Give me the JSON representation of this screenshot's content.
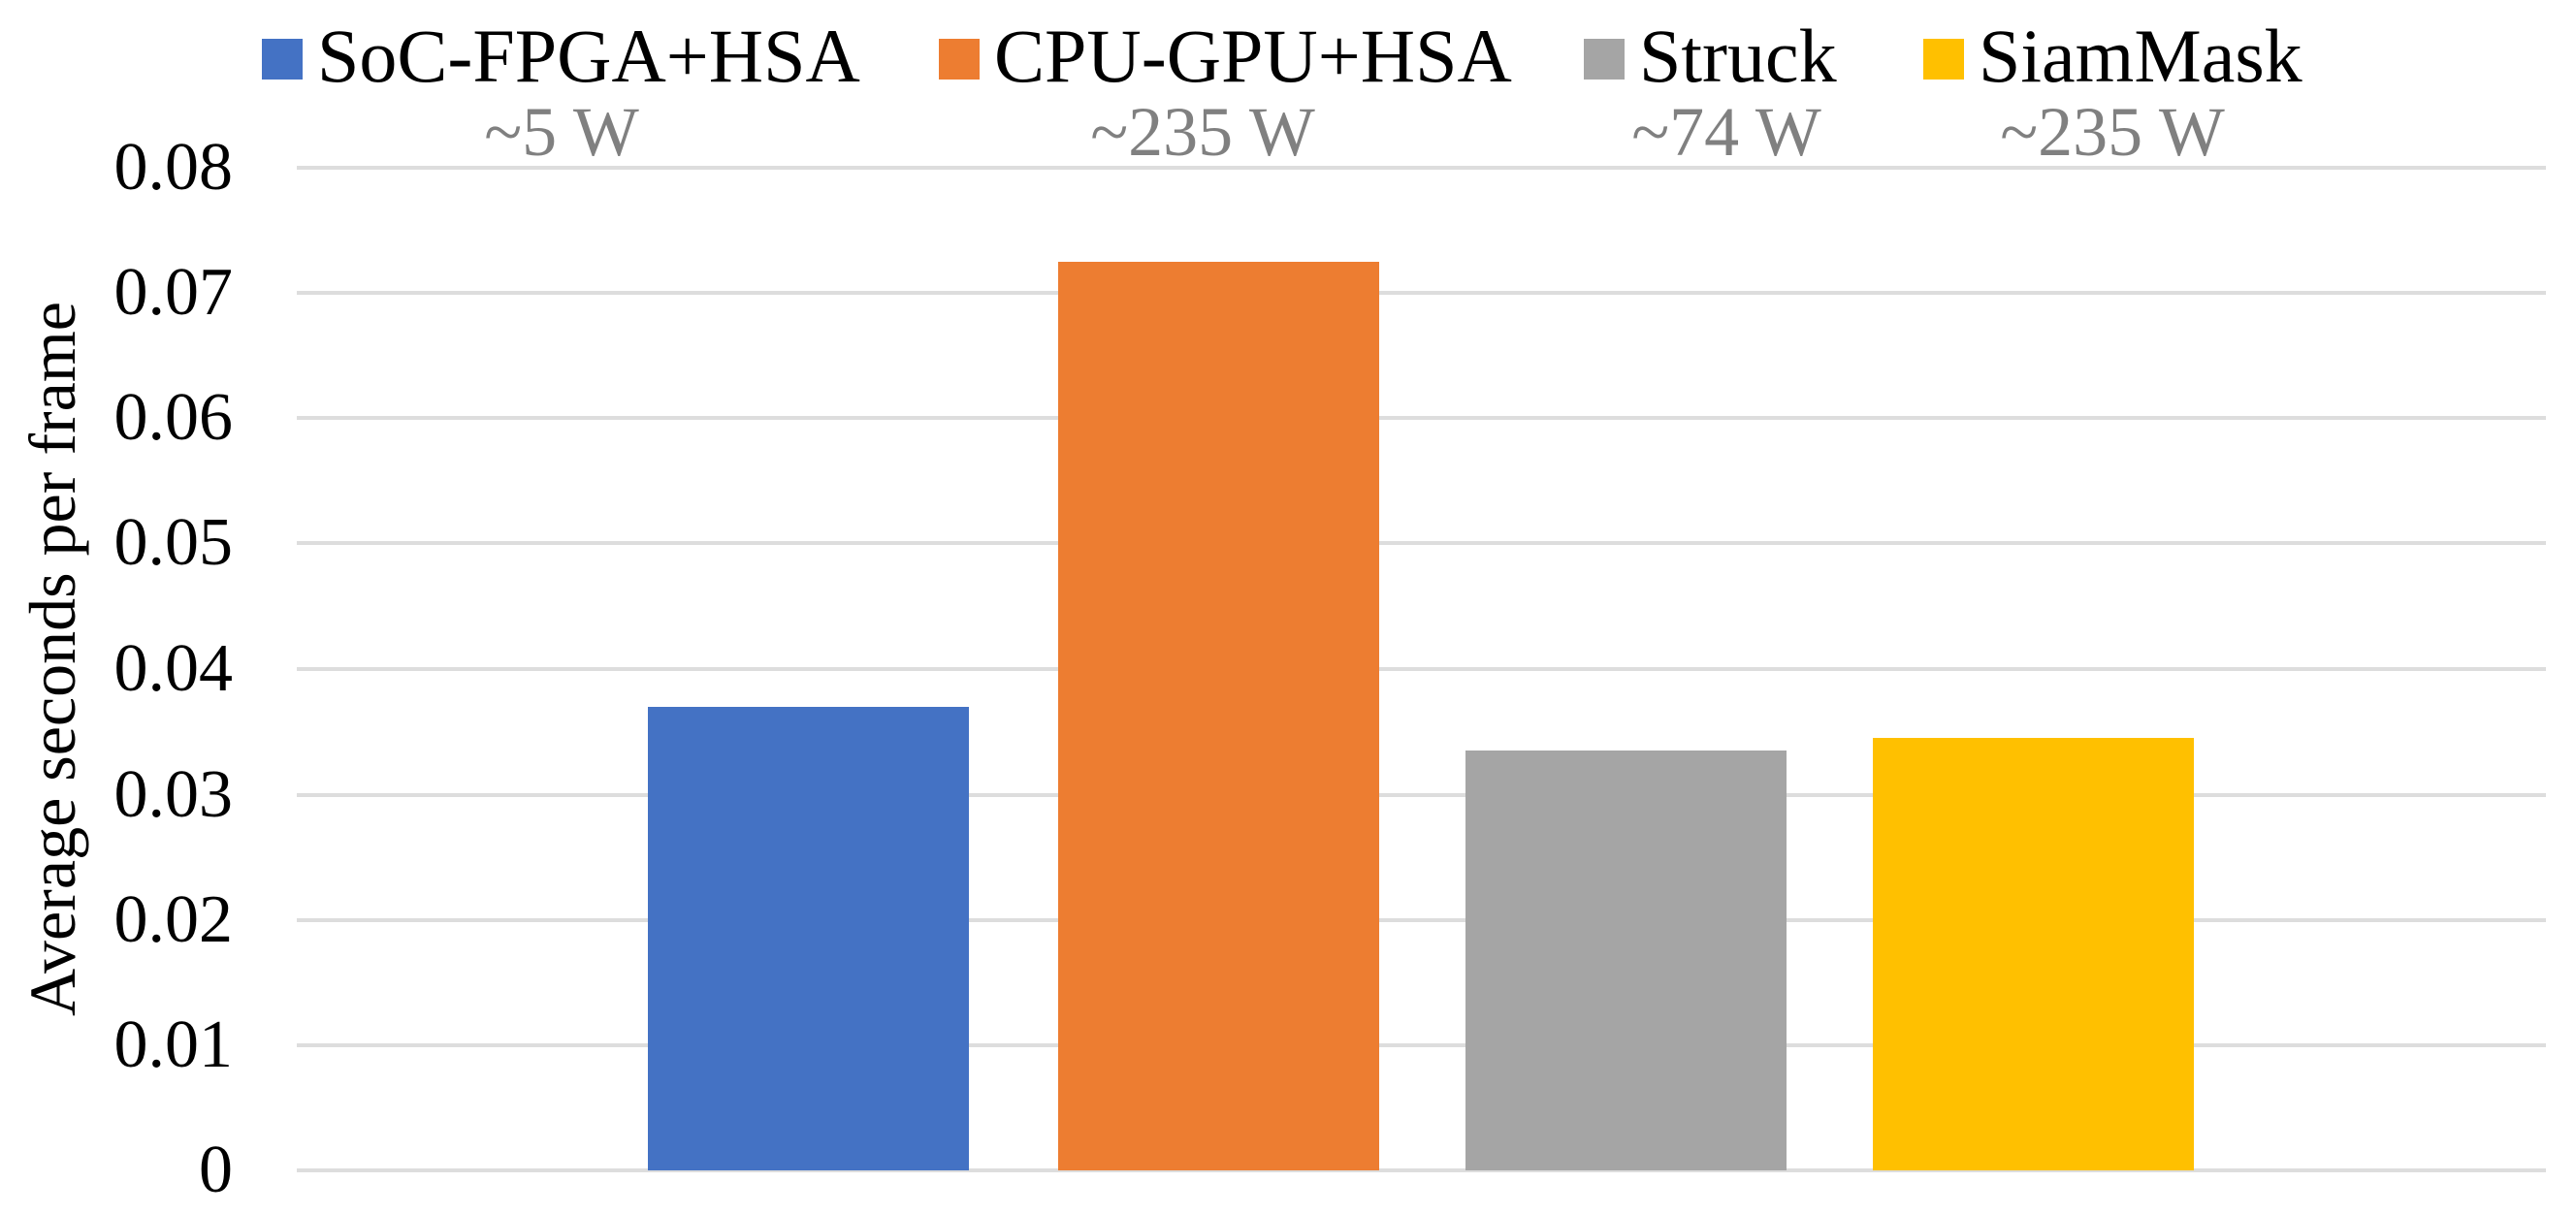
{
  "chart_data": {
    "type": "bar",
    "title": "",
    "xlabel": "",
    "ylabel": "Average seconds per frame",
    "ylim": [
      0,
      0.08
    ],
    "ytick_interval": 0.01,
    "ytick_labels": [
      "0.08",
      "0.07",
      "0.06",
      "0.05",
      "0.04",
      "0.03",
      "0.02",
      "0.01",
      "0"
    ],
    "grid": "horizontal",
    "legend_position": "top",
    "categories": [
      "SoC-FPGA+HSA",
      "CPU-GPU+HSA",
      "Struck",
      "SiamMask"
    ],
    "series": [
      {
        "name": "SoC-FPGA+HSA",
        "power": "~5 W",
        "value": 0.037,
        "color": "#4472C4"
      },
      {
        "name": "CPU-GPU+HSA",
        "power": "~235 W",
        "value": 0.0725,
        "color": "#ED7D31"
      },
      {
        "name": "Struck",
        "power": "~74 W",
        "value": 0.0335,
        "color": "#A5A5A5"
      },
      {
        "name": "SiamMask",
        "power": "~235 W",
        "value": 0.0345,
        "color": "#FFC000"
      }
    ],
    "colors": {
      "power_label_text": "#808080",
      "gridline": "#DDDDDD",
      "axis_text": "#000000",
      "background": "#FFFFFF"
    }
  }
}
